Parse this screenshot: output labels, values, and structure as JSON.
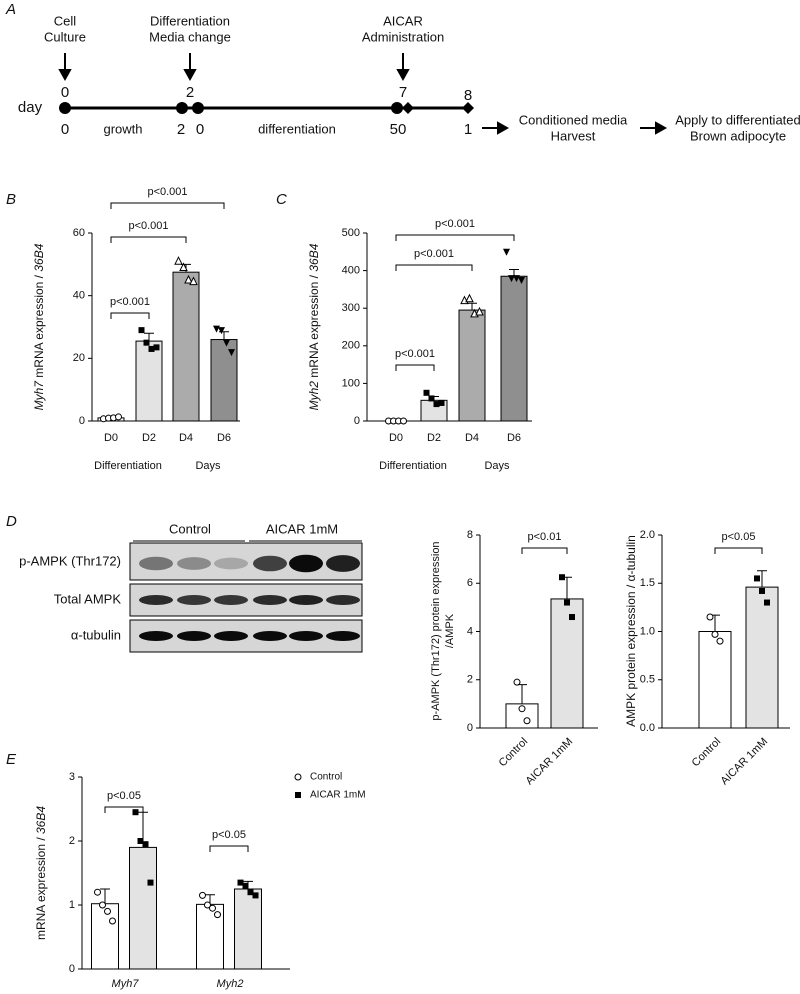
{
  "panel_labels": [
    "A",
    "B",
    "C",
    "D",
    "E"
  ],
  "timeline": {
    "events": [
      {
        "lines": [
          "Cell",
          "Culture"
        ],
        "day": "0"
      },
      {
        "lines": [
          "Differentiation",
          "Media change"
        ],
        "day": "2"
      },
      {
        "lines": [
          "AICAR",
          "Administration"
        ],
        "day": "7"
      }
    ],
    "end_day": "8",
    "axis_label": "day",
    "phases": [
      "0",
      "growth",
      "2",
      "0",
      "differentiation",
      "50",
      "1"
    ],
    "steps": [
      [
        "Conditioned media",
        "Harvest"
      ],
      [
        "Apply to differentiated",
        "Brown adipocyte"
      ]
    ]
  },
  "blot": {
    "groups": [
      "Control",
      "AICAR 1mM"
    ],
    "rows": [
      "p-AMPK (Thr172)",
      "Total AMPK",
      "α-tubulin"
    ]
  },
  "chart_data": [
    {
      "type": "bar",
      "ylabel": [
        "Myh7",
        " mRNA expression / ",
        "36B4"
      ],
      "categories": [
        "D0",
        "D2",
        "D4",
        "D6"
      ],
      "values": [
        1,
        25.5,
        47.5,
        26
      ],
      "errors": [
        0.4,
        2.5,
        2.5,
        2.5
      ],
      "points": [
        [
          0.7,
          0.9,
          1.0,
          1.3
        ],
        [
          29,
          25,
          23,
          23.5
        ],
        [
          51,
          49,
          45,
          44.5
        ],
        [
          29.5,
          29,
          25,
          22
        ]
      ],
      "colors": [
        "#ffffff",
        "#e3e3e3",
        "#ababab",
        "#8f8f8f"
      ],
      "markers": [
        "circle-open",
        "square",
        "triangle-open",
        "triangle-down"
      ],
      "ylim": [
        0,
        60
      ],
      "yticks": [
        0,
        20,
        40,
        60
      ],
      "brackets": [
        "p<0.001",
        "p<0.001",
        "p<0.001"
      ],
      "xlabels": [
        "Differentiation",
        "Days"
      ]
    },
    {
      "type": "bar",
      "ylabel": [
        "Myh2",
        " mRNA expression / ",
        "36B4"
      ],
      "categories": [
        "D0",
        "D2",
        "D4",
        "D6"
      ],
      "values": [
        0,
        55,
        295,
        385
      ],
      "errors": [
        2,
        10,
        18,
        18
      ],
      "points": [
        [
          0,
          0,
          0,
          0
        ],
        [
          75,
          60,
          45,
          48
        ],
        [
          320,
          325,
          285,
          290
        ],
        [
          450,
          380,
          380,
          375
        ]
      ],
      "colors": [
        "#ffffff",
        "#e3e3e3",
        "#ababab",
        "#8f8f8f"
      ],
      "markers": [
        "circle-open",
        "square",
        "triangle-open",
        "triangle-down"
      ],
      "ylim": [
        0,
        500
      ],
      "yticks": [
        0,
        100,
        200,
        300,
        400,
        500
      ],
      "brackets": [
        "p<0.001",
        "p<0.001",
        "p<0.001"
      ],
      "xlabels": [
        "Differentiation",
        "Days"
      ]
    },
    {
      "type": "bar",
      "ylabel": [
        "p-AMPK (Thr172) protein expression",
        "/AMPK"
      ],
      "categories": [
        "Control",
        "AICAR 1mM"
      ],
      "values": [
        1.0,
        5.35
      ],
      "errors": [
        0.8,
        0.9
      ],
      "points": [
        [
          1.9,
          0.8,
          0.3
        ],
        [
          6.25,
          5.2,
          4.6
        ]
      ],
      "colors": [
        "#ffffff",
        "#e3e3e3"
      ],
      "markers": [
        "circle-open",
        "square"
      ],
      "ylim": [
        0,
        8
      ],
      "yticks": [
        0,
        2,
        4,
        6,
        8
      ],
      "brackets": [
        "p<0.01"
      ]
    },
    {
      "type": "bar",
      "ylabel": [
        "AMPK protein expression / α-tubulin"
      ],
      "categories": [
        "Control",
        "AICAR 1mM"
      ],
      "values": [
        1.0,
        1.46
      ],
      "errors": [
        0.17,
        0.17
      ],
      "points": [
        [
          1.15,
          0.97,
          0.9
        ],
        [
          1.55,
          1.42,
          1.3
        ]
      ],
      "colors": [
        "#ffffff",
        "#e3e3e3"
      ],
      "markers": [
        "circle-open",
        "square"
      ],
      "ylim": [
        0,
        2
      ],
      "yticks": [
        {
          "value": 0,
          "label": "0.0"
        },
        {
          "value": 0.5,
          "label": "0.5"
        },
        {
          "value": 1,
          "label": "1.0"
        },
        {
          "value": 1.5,
          "label": "1.5"
        },
        {
          "value": 2,
          "label": "2.0"
        }
      ],
      "brackets": [
        "p<0.05"
      ]
    },
    {
      "type": "bar",
      "ylabel": [
        "mRNA expression / ",
        "36B4"
      ],
      "categories": [
        "Myh7",
        "Myh2"
      ],
      "series": [
        {
          "name": "Control",
          "color": "#ffffff",
          "marker": "circle-open",
          "values": [
            1.02,
            1.01
          ],
          "errors": [
            0.23,
            0.15
          ],
          "points": [
            [
              1.2,
              1.0,
              0.9,
              0.75
            ],
            [
              1.15,
              1.0,
              0.95,
              0.85
            ]
          ]
        },
        {
          "name": "AICAR 1mM",
          "color": "#e3e3e3",
          "marker": "square",
          "values": [
            1.9,
            1.25
          ],
          "errors": [
            0.55,
            0.12
          ],
          "points": [
            [
              2.45,
              2.0,
              1.95,
              1.35
            ],
            [
              1.35,
              1.3,
              1.2,
              1.15
            ]
          ]
        }
      ],
      "ylim": [
        0,
        3
      ],
      "yticks": [
        0,
        1,
        2,
        3
      ],
      "brackets": [
        "p<0.05",
        "p<0.05"
      ]
    }
  ]
}
